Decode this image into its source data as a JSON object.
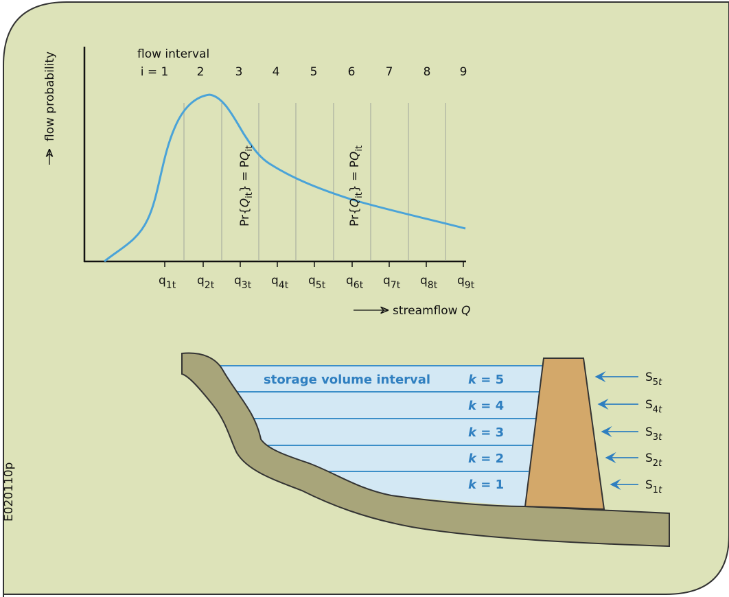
{
  "chart": {
    "y_axis_label": "flow probability",
    "interval_heading": "flow interval",
    "intervals": [
      "i = 1",
      "2",
      "3",
      "4",
      "5",
      "6",
      "7",
      "8",
      "9"
    ],
    "flow_labels": [
      {
        "base": "q",
        "sub": "1t"
      },
      {
        "base": "q",
        "sub": "2t"
      },
      {
        "base": "q",
        "sub": "3t"
      },
      {
        "base": "q",
        "sub": "4t"
      },
      {
        "base": "q",
        "sub": "5t"
      },
      {
        "base": "q",
        "sub": "6t"
      },
      {
        "base": "q",
        "sub": "7t"
      },
      {
        "base": "q",
        "sub": "8t"
      },
      {
        "base": "q",
        "sub": "9t"
      }
    ],
    "x_axis_label": {
      "text": "streamflow ",
      "italic": "Q"
    },
    "probability_labels": [
      {
        "pre": "Pr{",
        "q": "Q",
        "sub": "it",
        "mid": "} = P",
        "q2": "Q",
        "sub2": "it"
      },
      {
        "pre": "Pr{",
        "q": "Q",
        "sub": "it",
        "mid": "} = P",
        "q2": "Q",
        "sub2": "it"
      }
    ]
  },
  "reservoir": {
    "title": "storage volume interval",
    "levels": [
      {
        "var": "k",
        "eq": " = 5"
      },
      {
        "var": "k",
        "eq": " = 4"
      },
      {
        "var": "k",
        "eq": " = 3"
      },
      {
        "var": "k",
        "eq": " = 2"
      },
      {
        "var": "k",
        "eq": " = 1"
      }
    ],
    "storage": [
      {
        "base": "S",
        "index": "5",
        "time": "t"
      },
      {
        "base": "S",
        "index": "4",
        "time": "t"
      },
      {
        "base": "S",
        "index": "3",
        "time": "t"
      },
      {
        "base": "S",
        "index": "2",
        "time": "t"
      },
      {
        "base": "S",
        "index": "1",
        "time": "t"
      }
    ]
  },
  "figure_id": "E020110p"
}
